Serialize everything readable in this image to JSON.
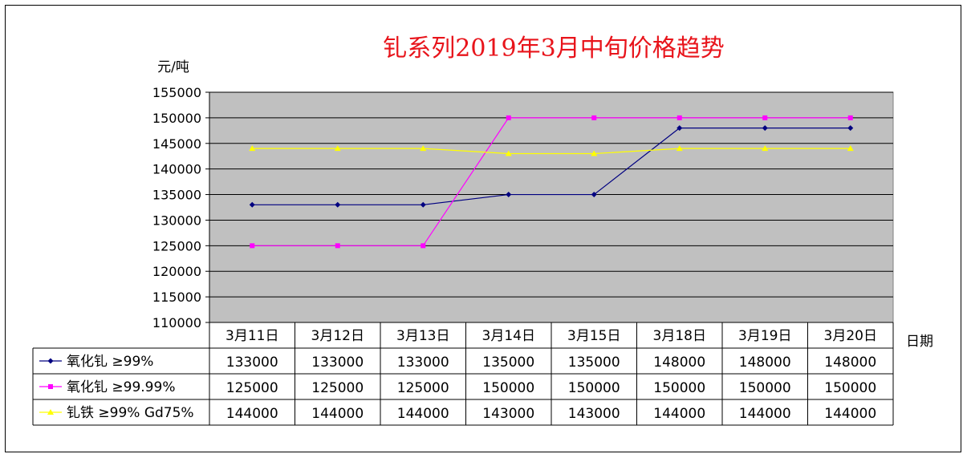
{
  "chart_data": {
    "type": "line",
    "title": "钆系列2019年3月中旬价格趋势",
    "ylabel": "元/吨",
    "xlabel": "日期",
    "ylim": [
      110000,
      155000
    ],
    "yticks": [
      "155000",
      "150000",
      "145000",
      "140000",
      "135000",
      "130000",
      "125000",
      "120000",
      "115000",
      "110000"
    ],
    "categories": [
      "3月11日",
      "3月12日",
      "3月13日",
      "3月14日",
      "3月15日",
      "3月18日",
      "3月19日",
      "3月20日"
    ],
    "grid": true,
    "legend": "data-table",
    "plot_background": "#c0c0c0",
    "series": [
      {
        "name": "氧化钆 ≥99%",
        "color": "#000080",
        "marker": "diamond",
        "values": [
          133000,
          133000,
          133000,
          135000,
          135000,
          148000,
          148000,
          148000
        ],
        "labels": [
          "133000",
          "133000",
          "133000",
          "135000",
          "135000",
          "148000",
          "148000",
          "148000"
        ]
      },
      {
        "name": "氧化钆 ≥99.99%",
        "color": "#ff00ff",
        "marker": "square",
        "values": [
          125000,
          125000,
          125000,
          150000,
          150000,
          150000,
          150000,
          150000
        ],
        "labels": [
          "125000",
          "125000",
          "125000",
          "150000",
          "150000",
          "150000",
          "150000",
          "150000"
        ]
      },
      {
        "name": "钆铁 ≥99% Gd75%",
        "color": "#ffff00",
        "marker": "triangle",
        "values": [
          144000,
          144000,
          144000,
          143000,
          143000,
          144000,
          144000,
          144000
        ],
        "labels": [
          "144000",
          "144000",
          "144000",
          "143000",
          "143000",
          "144000",
          "144000",
          "144000"
        ]
      }
    ]
  }
}
